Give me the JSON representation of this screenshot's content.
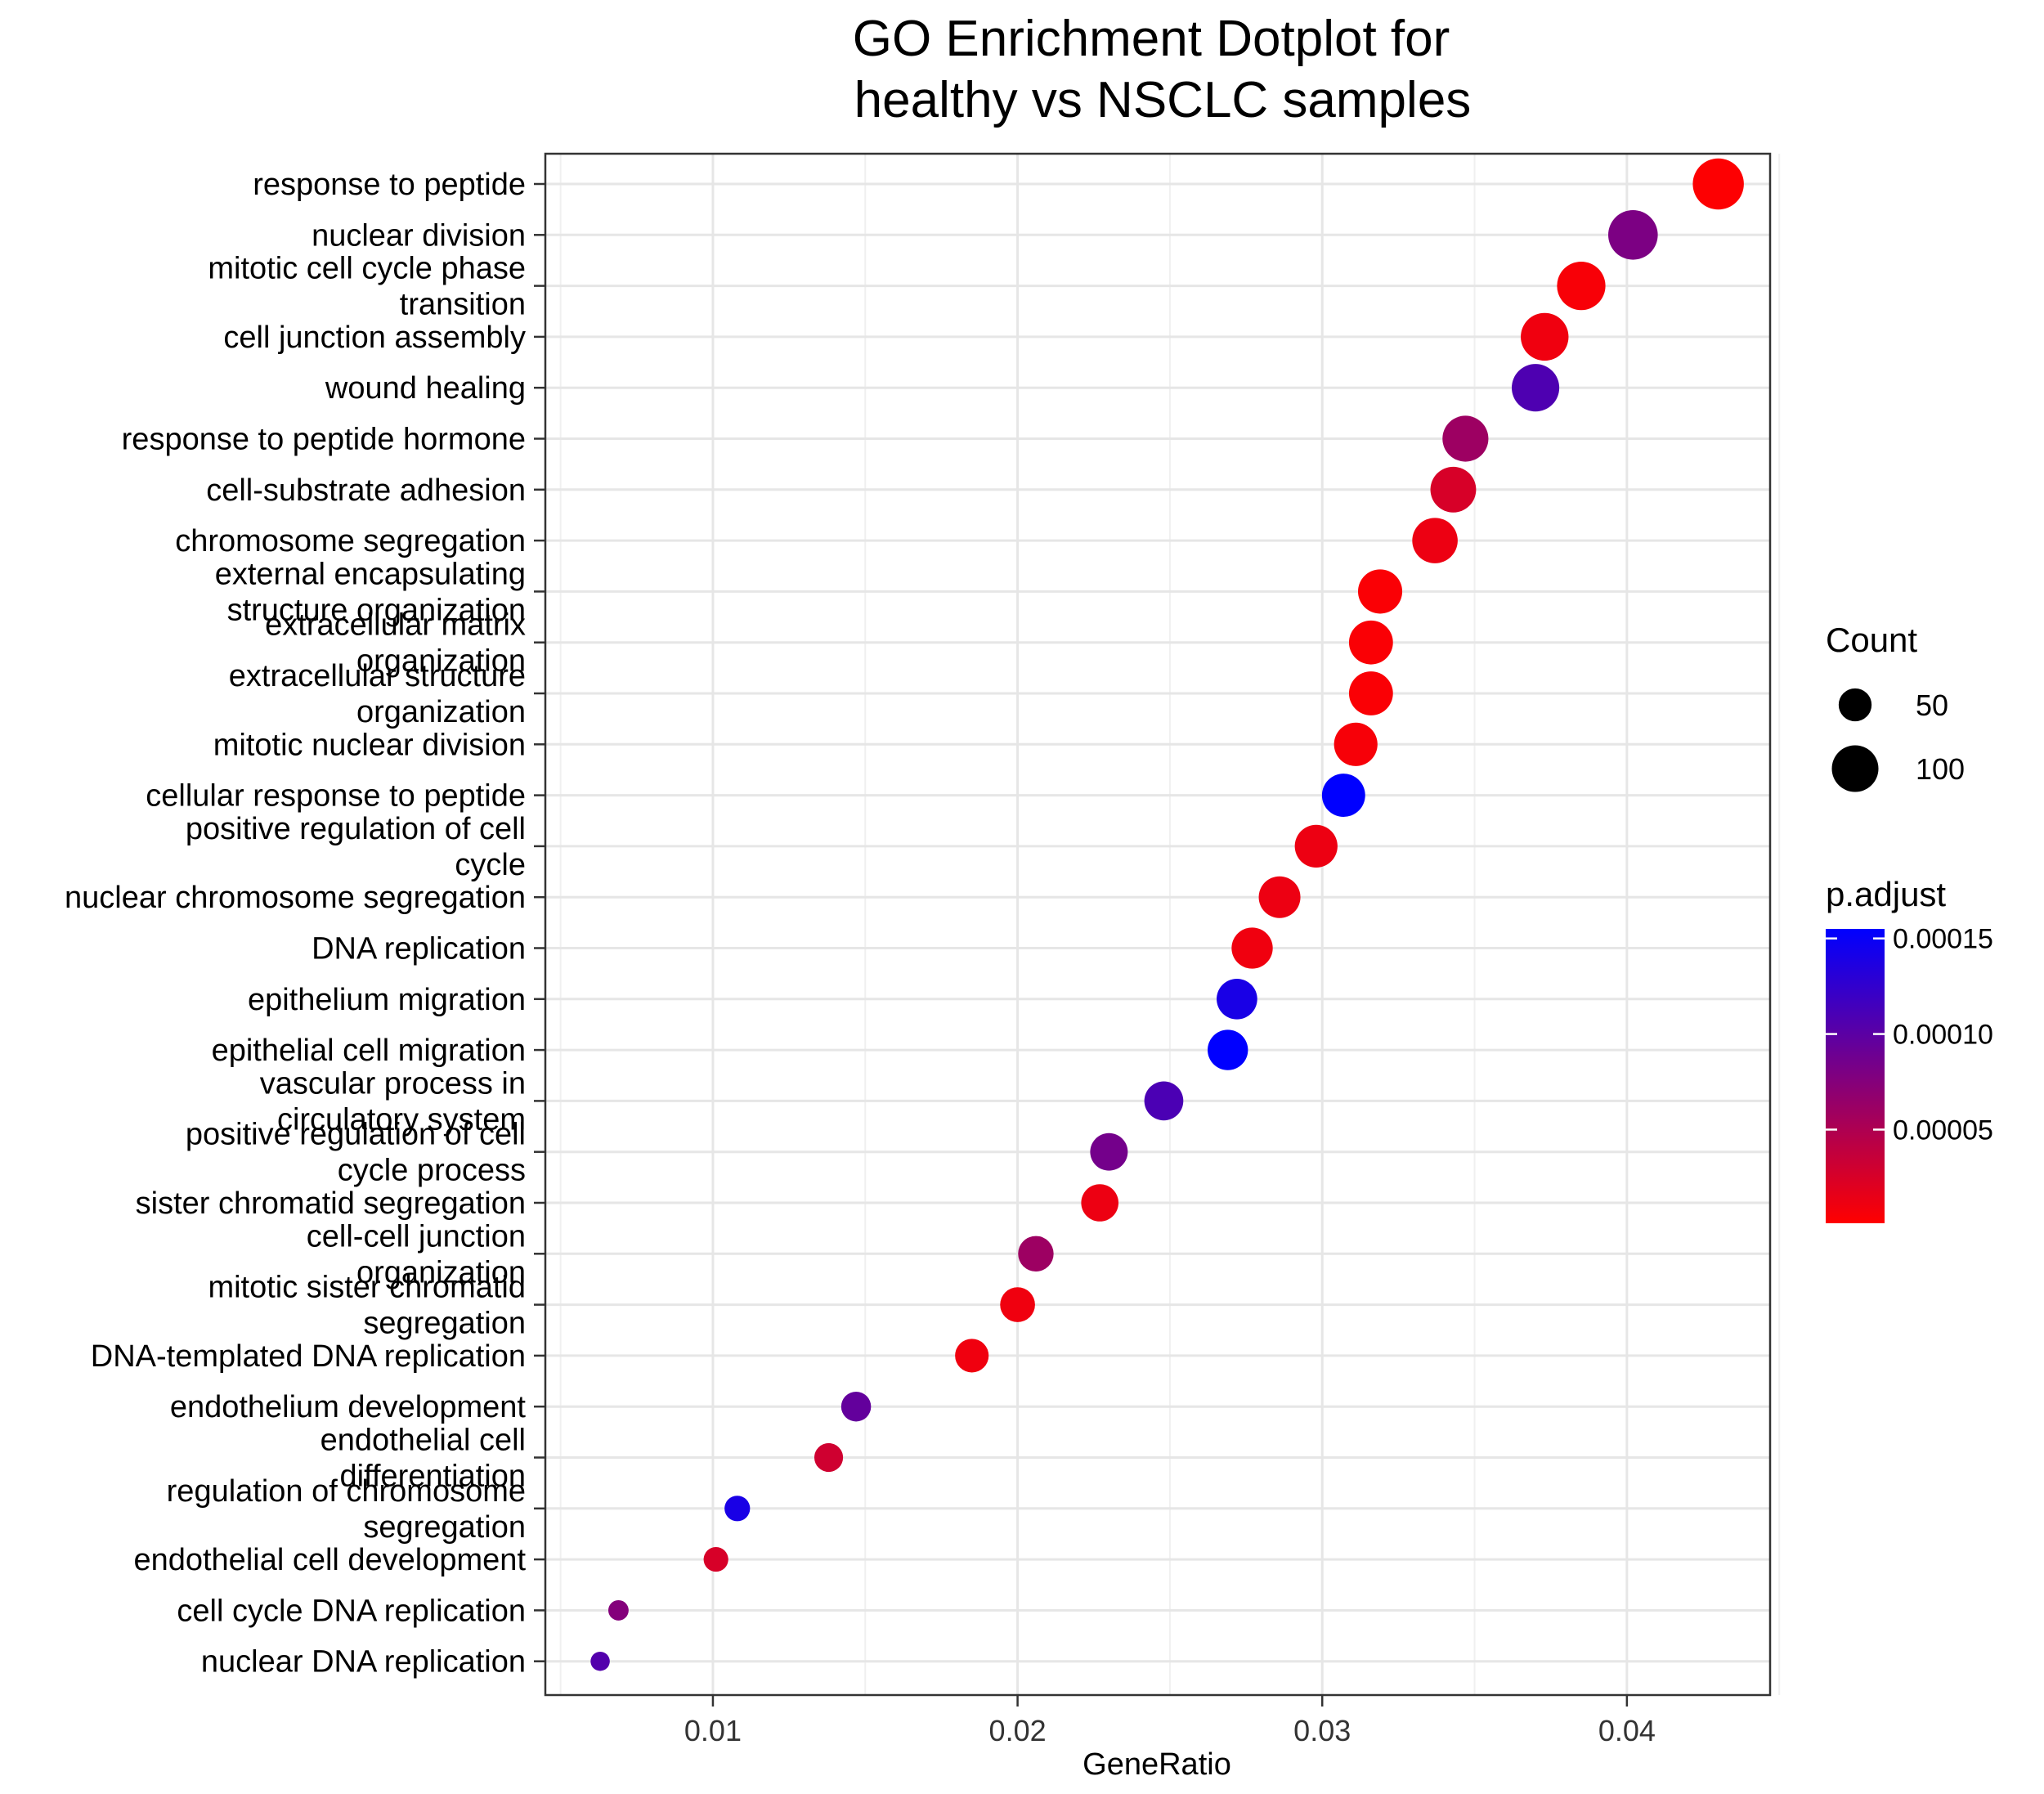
{
  "chart_data": {
    "type": "scatter",
    "title_lines": [
      "GO Enrichment Dotplot for",
      "healthy vs NSCLC samples"
    ],
    "xlabel": "GeneRatio",
    "ylabel": "",
    "xlim": [
      0.0045,
      0.0447
    ],
    "x_ticks": [
      0.01,
      0.02,
      0.03,
      0.04
    ],
    "x_tick_labels": [
      "0.01",
      "0.02",
      "0.03",
      "0.04"
    ],
    "grid": true,
    "legend_position": "right",
    "size_legend": {
      "title": "Count",
      "entries": [
        {
          "label": "50",
          "value": 50
        },
        {
          "label": "100",
          "value": 100
        }
      ]
    },
    "color_legend": {
      "title": "p.adjust",
      "range": [
        1e-06,
        0.000155
      ],
      "low_color": "#FF0000",
      "high_color": "#0000FF",
      "ticks": [
        5e-05,
        0.0001,
        0.00015
      ],
      "tick_labels": [
        "0.00005",
        "0.00010",
        "0.00015"
      ]
    },
    "points": [
      {
        "term": [
          "response to peptide"
        ],
        "gene_ratio": 0.043,
        "count": 120,
        "p_adjust": 2e-06
      },
      {
        "term": [
          "nuclear division"
        ],
        "gene_ratio": 0.0402,
        "count": 113,
        "p_adjust": 8e-05
      },
      {
        "term": [
          "mitotic cell cycle phase",
          "transition"
        ],
        "gene_ratio": 0.0385,
        "count": 108,
        "p_adjust": 5e-06
      },
      {
        "term": [
          "cell junction assembly"
        ],
        "gene_ratio": 0.0373,
        "count": 105,
        "p_adjust": 1e-05
      },
      {
        "term": [
          "wound healing"
        ],
        "gene_ratio": 0.037,
        "count": 104,
        "p_adjust": 0.000108
      },
      {
        "term": [
          "response to peptide hormone"
        ],
        "gene_ratio": 0.0347,
        "count": 97,
        "p_adjust": 6e-05
      },
      {
        "term": [
          "cell-substrate adhesion"
        ],
        "gene_ratio": 0.0343,
        "count": 96,
        "p_adjust": 2.5e-05
      },
      {
        "term": [
          "chromosome segregation"
        ],
        "gene_ratio": 0.0337,
        "count": 95,
        "p_adjust": 1.2e-05
      },
      {
        "term": [
          "external encapsulating",
          "structure organization"
        ],
        "gene_ratio": 0.0319,
        "count": 90,
        "p_adjust": 4e-06
      },
      {
        "term": [
          "extracellular matrix",
          "organization"
        ],
        "gene_ratio": 0.0316,
        "count": 89,
        "p_adjust": 4e-06
      },
      {
        "term": [
          "extracellular structure",
          "organization"
        ],
        "gene_ratio": 0.0316,
        "count": 89,
        "p_adjust": 4e-06
      },
      {
        "term": [
          "mitotic nuclear division"
        ],
        "gene_ratio": 0.0311,
        "count": 87,
        "p_adjust": 6e-06
      },
      {
        "term": [
          "cellular response to peptide"
        ],
        "gene_ratio": 0.0307,
        "count": 86,
        "p_adjust": 0.000155
      },
      {
        "term": [
          "positive regulation of cell",
          "cycle"
        ],
        "gene_ratio": 0.0298,
        "count": 84,
        "p_adjust": 1.2e-05
      },
      {
        "term": [
          "nuclear chromosome segregation"
        ],
        "gene_ratio": 0.0286,
        "count": 80,
        "p_adjust": 1.2e-05
      },
      {
        "term": [
          "DNA replication"
        ],
        "gene_ratio": 0.0277,
        "count": 78,
        "p_adjust": 1e-05
      },
      {
        "term": [
          "epithelium migration"
        ],
        "gene_ratio": 0.0272,
        "count": 76,
        "p_adjust": 0.00014
      },
      {
        "term": [
          "epithelial cell migration"
        ],
        "gene_ratio": 0.0269,
        "count": 75,
        "p_adjust": 0.000155
      },
      {
        "term": [
          "vascular process in",
          "circulatory system"
        ],
        "gene_ratio": 0.0248,
        "count": 70,
        "p_adjust": 0.00011
      },
      {
        "term": [
          "positive regulation of cell",
          "cycle process"
        ],
        "gene_ratio": 0.023,
        "count": 65,
        "p_adjust": 8.5e-05
      },
      {
        "term": [
          "sister chromatid segregation"
        ],
        "gene_ratio": 0.0227,
        "count": 64,
        "p_adjust": 1.2e-05
      },
      {
        "term": [
          "cell-cell junction",
          "organization"
        ],
        "gene_ratio": 0.0206,
        "count": 58,
        "p_adjust": 6e-05
      },
      {
        "term": [
          "mitotic sister chromatid",
          "segregation"
        ],
        "gene_ratio": 0.02,
        "count": 56,
        "p_adjust": 1e-05
      },
      {
        "term": [
          "DNA-templated DNA replication"
        ],
        "gene_ratio": 0.0185,
        "count": 52,
        "p_adjust": 1e-05
      },
      {
        "term": [
          "endothelium development"
        ],
        "gene_ratio": 0.0147,
        "count": 41,
        "p_adjust": 9.5e-05
      },
      {
        "term": [
          "endothelial cell",
          "differentiation"
        ],
        "gene_ratio": 0.0138,
        "count": 38,
        "p_adjust": 3e-05
      },
      {
        "term": [
          "regulation of chromosome",
          "segregation"
        ],
        "gene_ratio": 0.0108,
        "count": 30,
        "p_adjust": 0.00014
      },
      {
        "term": [
          "endothelial cell development"
        ],
        "gene_ratio": 0.0101,
        "count": 28,
        "p_adjust": 2.5e-05
      },
      {
        "term": [
          "cell cycle DNA replication"
        ],
        "gene_ratio": 0.0069,
        "count": 19,
        "p_adjust": 7.5e-05
      },
      {
        "term": [
          "nuclear DNA replication"
        ],
        "gene_ratio": 0.0063,
        "count": 17,
        "p_adjust": 0.000105
      }
    ]
  }
}
